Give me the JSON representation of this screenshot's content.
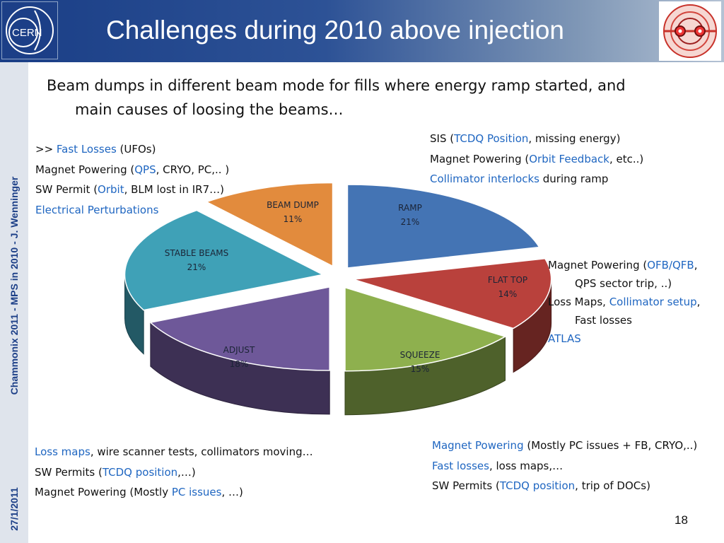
{
  "header": {
    "title": "Challenges during 2010 above injection",
    "logo_left_text": "CERN",
    "colors": {
      "header_start": "#1a3e86",
      "header_end": "#b4c2d4"
    }
  },
  "sidebar": {
    "author": "Chammonix 2011 - MPS in 2010 - J. Wenninger",
    "date": "27/1/2011"
  },
  "intro": {
    "line1": "Beam dumps in different beam mode for fills where energy ramp started, and",
    "line2": "main causes of loosing the beams…"
  },
  "notes": {
    "stable_beams": [
      [
        {
          "t": ">> ",
          "hl": false
        },
        {
          "t": "Fast Losses",
          "hl": true
        },
        {
          "t": " (UFOs)",
          "hl": false
        }
      ],
      [
        {
          "t": "Magnet Powering (",
          "hl": false
        },
        {
          "t": "QPS",
          "hl": true
        },
        {
          "t": ", CRYO, PC,.. )",
          "hl": false
        }
      ],
      [
        {
          "t": "SW Permit (",
          "hl": false
        },
        {
          "t": "Orbit",
          "hl": true
        },
        {
          "t": ", BLM lost in IR7…)",
          "hl": false
        }
      ],
      [
        {
          "t": "Electrical Perturbations",
          "hl": true
        }
      ]
    ],
    "ramp": [
      [
        {
          "t": "SIS (",
          "hl": false
        },
        {
          "t": "TCDQ Position",
          "hl": true
        },
        {
          "t": ", missing energy)",
          "hl": false
        }
      ],
      [
        {
          "t": "Magnet Powering (",
          "hl": false
        },
        {
          "t": "Orbit Feedback",
          "hl": true
        },
        {
          "t": ", etc..)",
          "hl": false
        }
      ],
      [
        {
          "t": "Collimator interlocks",
          "hl": true
        },
        {
          "t": " during ramp",
          "hl": false
        }
      ]
    ],
    "flat_top": [
      [
        {
          "t": "Magnet Powering (",
          "hl": false
        },
        {
          "t": "OFB/QFB",
          "hl": true
        },
        {
          "t": ",",
          "hl": false
        }
      ],
      [
        {
          "t": "QPS sector trip, ..)",
          "hl": false
        }
      ],
      [
        {
          "t": "Loss Maps, ",
          "hl": false
        },
        {
          "t": "Collimator setup",
          "hl": true
        },
        {
          "t": ",",
          "hl": false
        }
      ],
      [
        {
          "t": "Fast losses",
          "hl": false
        }
      ],
      [
        {
          "t": "ATLAS",
          "hl": true
        }
      ]
    ],
    "adjust": [
      [
        {
          "t": "Loss maps",
          "hl": true
        },
        {
          "t": ", wire scanner tests, collimators moving…",
          "hl": false
        }
      ],
      [
        {
          "t": "SW Permits (",
          "hl": false
        },
        {
          "t": "TCDQ position",
          "hl": true
        },
        {
          "t": ",…)",
          "hl": false
        }
      ],
      [
        {
          "t": "Magnet Powering (Mostly ",
          "hl": false
        },
        {
          "t": "PC issues",
          "hl": true
        },
        {
          "t": ", …)",
          "hl": false
        }
      ]
    ],
    "squeeze": [
      [
        {
          "t": "Magnet Powering",
          "hl": true
        },
        {
          "t": " (Mostly PC issues + FB, CRYO,..)",
          "hl": false
        }
      ],
      [
        {
          "t": "Fast losses",
          "hl": true
        },
        {
          "t": ", loss maps,…",
          "hl": false
        }
      ],
      [
        {
          "t": "SW Permits (",
          "hl": false
        },
        {
          "t": "TCDQ position",
          "hl": true
        },
        {
          "t": ", trip of DOCs)",
          "hl": false
        }
      ]
    ]
  },
  "page_number": "18",
  "chart_data": {
    "type": "pie",
    "title": "",
    "exploded": true,
    "three_d": true,
    "start": "top, clockwise",
    "slices": [
      {
        "label": "RAMP",
        "pct_label": "21%",
        "value": 21,
        "color": "#4474b4"
      },
      {
        "label": "FLAT TOP",
        "pct_label": "14%",
        "value": 14,
        "color": "#b9413c"
      },
      {
        "label": "SQUEEZE",
        "pct_label": "15%",
        "value": 15,
        "color": "#8eb04e"
      },
      {
        "label": "ADJUST",
        "pct_label": "18%",
        "value": 18,
        "color": "#6e5899"
      },
      {
        "label": "STABLE BEAMS",
        "pct_label": "21%",
        "value": 21,
        "color": "#3fa1b7"
      },
      {
        "label": "BEAM DUMP",
        "pct_label": "11%",
        "value": 11,
        "color": "#e28b3d"
      }
    ]
  }
}
